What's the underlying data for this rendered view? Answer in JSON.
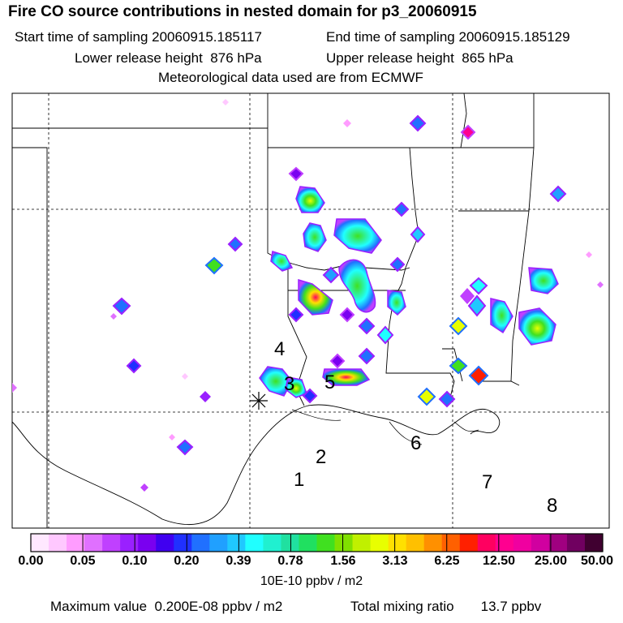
{
  "title": "Fire CO source contributions in nested domain for p3_20060915",
  "header": {
    "start_label": "Start time of sampling",
    "start_value": "20060915.185117",
    "end_label": "End time of sampling",
    "end_value": "20060915.185129",
    "lower_label": "Lower release height",
    "lower_value": "876 hPa",
    "upper_label": "Upper release height",
    "upper_value": "865 hPa",
    "met_line": "Meteorological data used are from ECMWF"
  },
  "map": {
    "region_labels": [
      "1",
      "2",
      "3",
      "4",
      "5",
      "6",
      "7",
      "8"
    ],
    "release_marker": "star-cross"
  },
  "colorbar": {
    "ticks": [
      "0.00",
      "0.05",
      "0.10",
      "0.20",
      "0.39",
      "0.78",
      "1.56",
      "3.13",
      "6.25",
      "12.50",
      "25.00",
      "50.00"
    ],
    "units": "10E-10 ppbv / m2",
    "colors": [
      "#ffe8ff",
      "#ffc8ff",
      "#ff9cff",
      "#e070ff",
      "#c040ff",
      "#9a20ff",
      "#7a00f0",
      "#4000f0",
      "#2030ff",
      "#2070ff",
      "#20a0ff",
      "#20c8ff",
      "#20ffff",
      "#20f0d0",
      "#20e0a0",
      "#20e060",
      "#40e020",
      "#80e000",
      "#c0f000",
      "#e8ff00",
      "#ffe000",
      "#ffc000",
      "#ff9000",
      "#ff6000",
      "#ff2000",
      "#ff0060",
      "#ff0090",
      "#f000a0",
      "#d000a0",
      "#a00080",
      "#700060",
      "#400030"
    ]
  },
  "footer": {
    "max_label": "Maximum value",
    "max_value": "0.200E-08 ppbv / m2",
    "total_label": "Total mixing ratio",
    "total_value": "13.7 ppbv"
  }
}
